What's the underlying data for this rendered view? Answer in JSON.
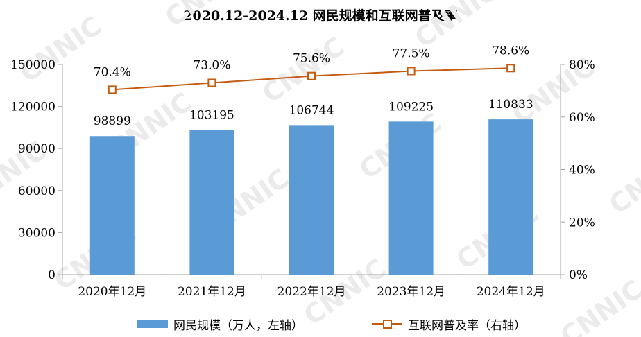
{
  "chart_data": {
    "type": "bar+line",
    "title": "2020.12-2024.12 网民规模和互联网普及率",
    "watermark": "CNNIC",
    "categories": [
      "2020年12月",
      "2021年12月",
      "2022年12月",
      "2023年12月",
      "2024年12月"
    ],
    "series": [
      {
        "name": "网民规模（万人，左轴）",
        "type": "bar",
        "axis": "left",
        "values": [
          98899,
          103195,
          106744,
          109225,
          110833
        ],
        "labels": [
          "98899",
          "103195",
          "106744",
          "109225",
          "110833"
        ],
        "color": "#5b9bd5"
      },
      {
        "name": "互联网普及率（右轴）",
        "type": "line",
        "axis": "right",
        "values": [
          70.4,
          73.0,
          75.6,
          77.5,
          78.6
        ],
        "labels": [
          "70.4%",
          "73.0%",
          "75.6%",
          "77.5%",
          "78.6%"
        ],
        "color": "#c55a11"
      }
    ],
    "y_left": {
      "min": 0,
      "max": 150000,
      "ticks": [
        0,
        30000,
        60000,
        90000,
        120000,
        150000
      ],
      "tick_labels": [
        "0",
        "30000",
        "60000",
        "90000",
        "120000",
        "150000"
      ]
    },
    "y_right": {
      "min": 0,
      "max": 80,
      "ticks": [
        0,
        20,
        40,
        60,
        80
      ],
      "tick_labels": [
        "0%",
        "20%",
        "40%",
        "60%",
        "80%"
      ]
    },
    "grid": false,
    "legend_position": "bottom"
  }
}
